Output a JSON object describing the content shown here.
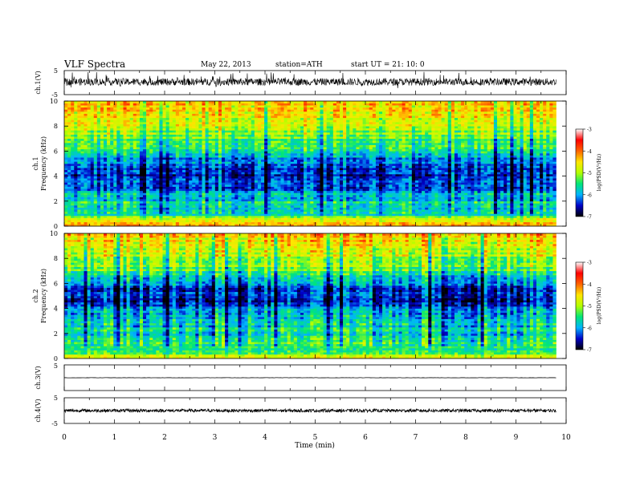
{
  "header": {
    "title": "VLF  Spectra",
    "date": "May 22, 2013",
    "station": "station=ATH",
    "start": "start  UT  =   21: 10: 0"
  },
  "colorbar": {
    "label": "log(PSD(V²/Hz)",
    "ticks": [
      "-3",
      "-4",
      "-5",
      "-6",
      "-7"
    ],
    "colors": [
      "#000000",
      "#0000c8",
      "#00b4ff",
      "#00e678",
      "#b4ff00",
      "#ffe600",
      "#ff6400",
      "#ff0000",
      "#ffffff"
    ]
  },
  "chart_data": [
    {
      "type": "line",
      "panel": "ch1-waveform",
      "ylabel": "ch.1(V)",
      "ylim": [
        -5,
        5
      ],
      "yticks": [
        "5",
        "-5"
      ],
      "x_range_min": [
        0,
        9.8
      ],
      "baseline_V": 0.3,
      "amplitude_V": 1.5,
      "note_values": "dense broadband VLF waveform, values approximated"
    },
    {
      "type": "heatmap",
      "panel": "ch1-spectrogram",
      "ylabel_channel": "ch.1",
      "ylabel": "Frequency  (kHz)",
      "ylim": [
        0,
        10
      ],
      "yticks": [
        "0",
        "2",
        "4",
        "6",
        "8",
        "10"
      ],
      "x_range_min": [
        0,
        9.8
      ],
      "profile_khz": [
        0,
        0.5,
        1,
        2,
        3,
        4,
        5,
        5.5,
        6,
        7,
        8,
        9,
        10
      ],
      "profile_logpsd": [
        -4.0,
        -4.3,
        -5.6,
        -5.5,
        -6.0,
        -6.3,
        -6.1,
        -5.8,
        -5.3,
        -5.0,
        -4.6,
        -4.2,
        -3.9
      ]
    },
    {
      "type": "heatmap",
      "panel": "ch2-spectrogram",
      "ylabel_channel": "ch.2",
      "ylabel": "Frequency  (kHz)",
      "ylim": [
        0,
        10
      ],
      "yticks": [
        "0",
        "2",
        "4",
        "6",
        "8",
        "10"
      ],
      "x_range_min": [
        0,
        9.8
      ],
      "profile_khz": [
        0,
        0.5,
        1,
        2,
        3,
        4,
        4.5,
        5,
        5.5,
        6,
        7,
        8,
        9,
        10
      ],
      "profile_logpsd": [
        -4.2,
        -5.0,
        -5.2,
        -5.4,
        -5.6,
        -6.0,
        -6.4,
        -6.1,
        -6.4,
        -5.8,
        -5.0,
        -4.6,
        -4.3,
        -4.0
      ]
    },
    {
      "type": "line",
      "panel": "ch3-waveform",
      "ylabel": "ch.3(V)",
      "ylim": [
        -5,
        5
      ],
      "yticks": [
        "5",
        "-5"
      ],
      "x_range_min": [
        0,
        9.8
      ],
      "baseline_V": 0.0,
      "amplitude_V": 0.05
    },
    {
      "type": "line",
      "panel": "ch4-waveform",
      "ylabel": "ch.4(V)",
      "ylim": [
        -5,
        5
      ],
      "yticks": [
        "5",
        "-5"
      ],
      "x_range_min": [
        0,
        9.8
      ],
      "baseline_V": 0.0,
      "amplitude_V": 0.6
    }
  ],
  "xaxis": {
    "label": "Time  (min)",
    "xlim": [
      0,
      10
    ],
    "ticks": [
      "0",
      "1",
      "2",
      "3",
      "4",
      "5",
      "6",
      "7",
      "8",
      "9",
      "10"
    ]
  }
}
